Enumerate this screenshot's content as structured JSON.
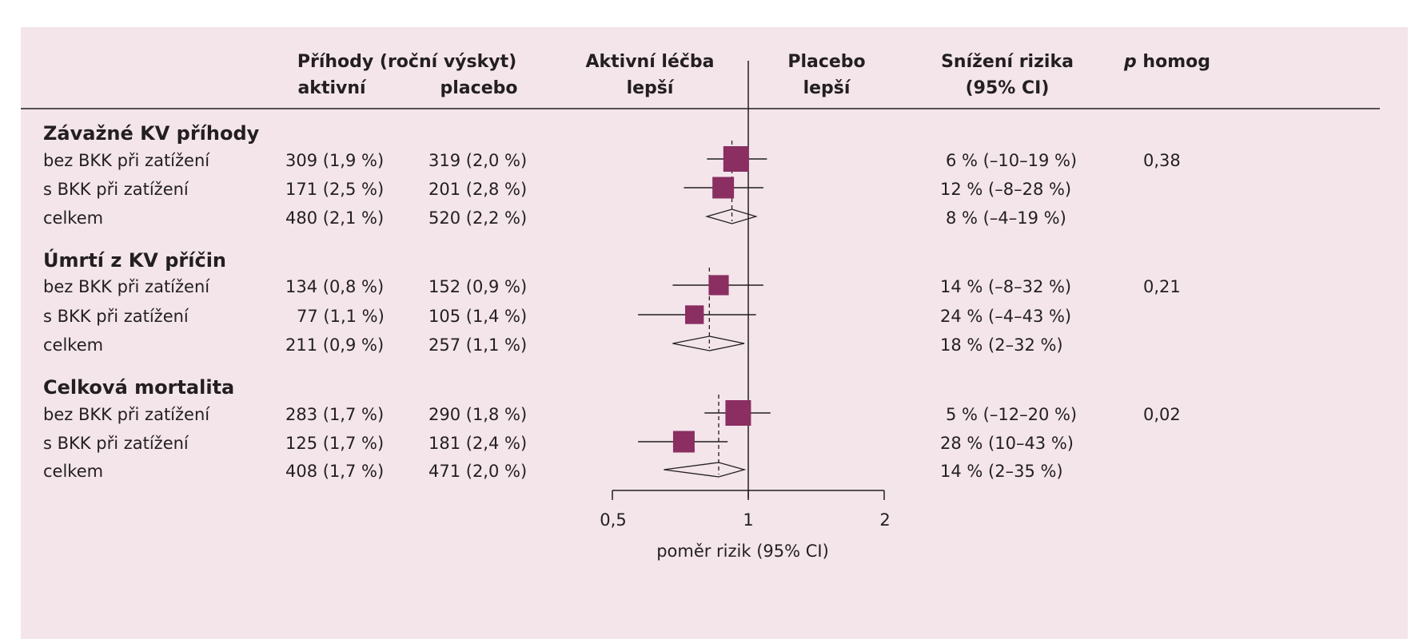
{
  "headers": {
    "events_line1": "Příhody (roční výskyt)",
    "active": "aktivní",
    "placebo": "placebo",
    "active_better_line1": "Aktivní léčba",
    "active_better_line2": "lepší",
    "placebo_better_line1": "Placebo",
    "placebo_better_line2": "lepší",
    "risk_reduction_line1": "Snížení rizika",
    "risk_reduction_line2": "(95% CI)",
    "p_homog_italic": "p",
    "p_homog_rest": " homog"
  },
  "groups": [
    {
      "title": "Závažné KV příhody",
      "p_homog": "0,38",
      "pooled_rr": 0.92,
      "rows": [
        {
          "label": "bez BKK při zatížení",
          "active": "309 (1,9 %)",
          "placebo": "319 (2,0 %)",
          "reduction": "6 % (–10–19 %)",
          "rr": 0.94,
          "lo": 0.81,
          "hi": 1.1,
          "size": 1.0,
          "kind": "square"
        },
        {
          "label": "s BKK při zatížení",
          "active": "171 (2,5 %)",
          "placebo": "201 (2,8 %)",
          "reduction": "12 % (–8–28 %)",
          "rr": 0.88,
          "lo": 0.72,
          "hi": 1.08,
          "size": 0.72,
          "kind": "square"
        },
        {
          "label": "celkem",
          "active": "480 (2,1 %)",
          "placebo": "520 (2,2 %)",
          "reduction": "8 % (–4–19 %)",
          "rr": 0.92,
          "lo": 0.81,
          "hi": 1.04,
          "size": 0,
          "kind": "diamond"
        }
      ]
    },
    {
      "title": "Úmrtí z KV příčin",
      "p_homog": "0,21",
      "pooled_rr": 0.82,
      "rows": [
        {
          "label": "bez BKK při zatížení",
          "active": "134 (0,8 %)",
          "placebo": "152 (0,9 %)",
          "reduction": "14 % (–8–32 %)",
          "rr": 0.86,
          "lo": 0.68,
          "hi": 1.08,
          "size": 0.62,
          "kind": "square"
        },
        {
          "label": "s BKK při zatížení",
          "active": "77 (1,1 %)",
          "placebo": "105 (1,4 %)",
          "reduction": "24 % (–4–43 %)",
          "rr": 0.76,
          "lo": 0.57,
          "hi": 1.04,
          "size": 0.52,
          "kind": "square"
        },
        {
          "label": "celkem",
          "active": "211 (0,9 %)",
          "placebo": "257 (1,1 %)",
          "reduction": "18 % (2–32 %)",
          "rr": 0.82,
          "lo": 0.68,
          "hi": 0.98,
          "size": 0,
          "kind": "diamond"
        }
      ]
    },
    {
      "title": "Celková mortalita",
      "p_homog": "0,02",
      "pooled_rr": 0.86,
      "rows": [
        {
          "label": "bez BKK při zatížení",
          "active": "283 (1,7 %)",
          "placebo": "290 (1,8 %)",
          "reduction": "5 % (–12–20 %)",
          "rr": 0.95,
          "lo": 0.8,
          "hi": 1.12,
          "size": 1.0,
          "kind": "square"
        },
        {
          "label": "s BKK při zatížení",
          "active": "125 (1,7 %)",
          "placebo": "181 (2,4 %)",
          "reduction": "28 % (10–43 %)",
          "rr": 0.72,
          "lo": 0.57,
          "hi": 0.9,
          "size": 0.72,
          "kind": "square"
        },
        {
          "label": "celkem",
          "active": "408 (1,7 %)",
          "placebo": "471 (2,0 %)",
          "reduction": "14 % (2–35 %)",
          "rr": 0.86,
          "lo": 0.65,
          "hi": 0.98,
          "size": 0,
          "kind": "diamond"
        }
      ]
    }
  ],
  "axis": {
    "ticks": [
      0.5,
      1,
      2
    ],
    "tick_labels": [
      "0,5",
      "1",
      "2"
    ],
    "label": "poměr rizik (95% CI)",
    "scale": "log",
    "range": [
      0.5,
      2
    ]
  },
  "colors": {
    "background": "#f3e5ea",
    "marker": "#8b2e62",
    "text": "#231f20"
  },
  "chart_data": {
    "type": "scatter",
    "title": "",
    "xlabel": "poměr rizik (95% CI)",
    "ylabel": "",
    "xscale": "log",
    "xlim": [
      0.5,
      2
    ],
    "x_ticks": [
      0.5,
      1,
      2
    ],
    "reference_line": 1,
    "series": [
      {
        "name": "Závažné KV příhody",
        "categories": [
          "bez BKK při zatížení",
          "s BKK při zatížení",
          "celkem"
        ],
        "x": [
          0.94,
          0.88,
          0.92
        ],
        "ci_low": [
          0.81,
          0.72,
          0.81
        ],
        "ci_high": [
          1.1,
          1.08,
          1.04
        ]
      },
      {
        "name": "Úmrtí z KV příčin",
        "categories": [
          "bez BKK při zatížení",
          "s BKK při zatížení",
          "celkem"
        ],
        "x": [
          0.86,
          0.76,
          0.82
        ],
        "ci_low": [
          0.68,
          0.57,
          0.68
        ],
        "ci_high": [
          1.08,
          1.04,
          0.98
        ]
      },
      {
        "name": "Celková mortalita",
        "categories": [
          "bez BKK při zatížení",
          "s BKK při zatížení",
          "celkem"
        ],
        "x": [
          0.95,
          0.72,
          0.86
        ],
        "ci_low": [
          0.8,
          0.57,
          0.65
        ],
        "ci_high": [
          1.12,
          0.9,
          0.98
        ]
      }
    ]
  }
}
